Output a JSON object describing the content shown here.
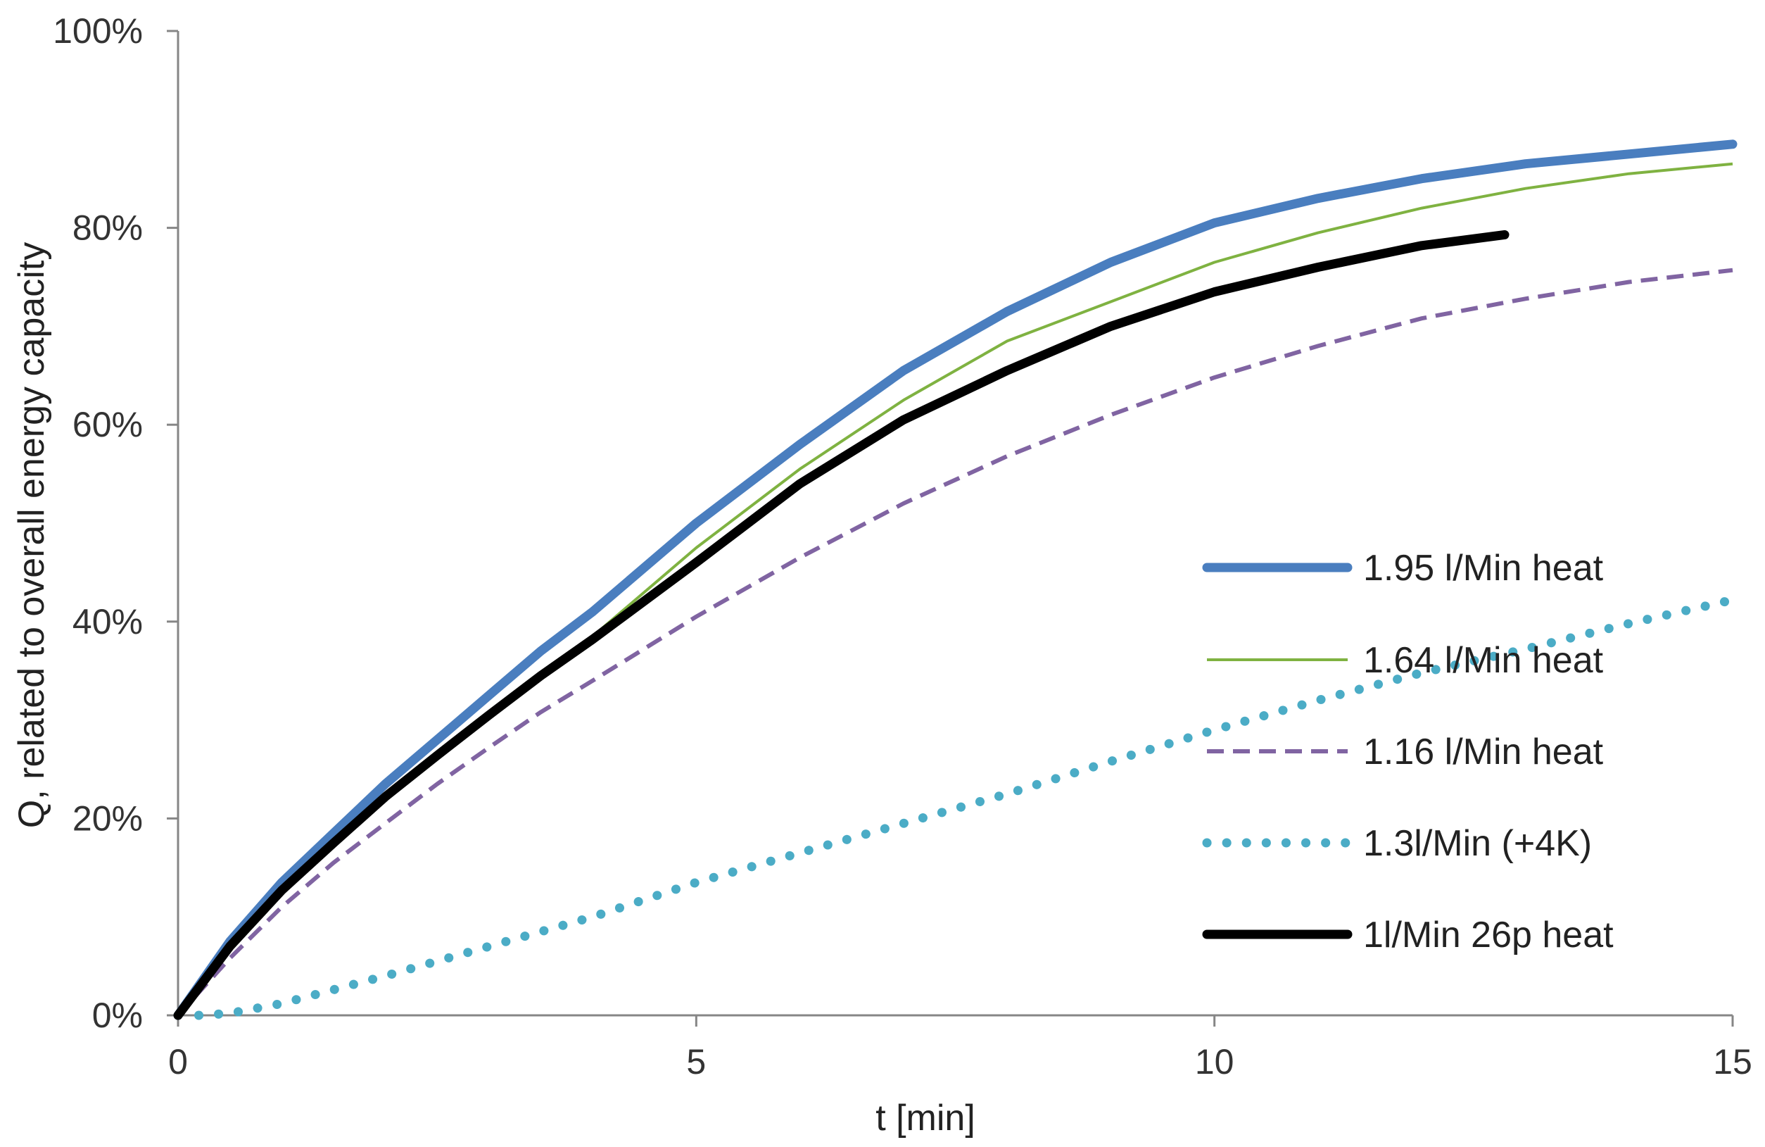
{
  "chart_data": {
    "type": "line",
    "title": "",
    "xlabel": "t [min]",
    "ylabel": "Q, related to overall energy capacity",
    "xlim": [
      0,
      15
    ],
    "ylim": [
      0,
      1
    ],
    "xticks": [
      0,
      5,
      10,
      15
    ],
    "xtick_labels": [
      "0",
      "5",
      "10",
      "15"
    ],
    "yticks": [
      0,
      0.2,
      0.4,
      0.6,
      0.8,
      1.0
    ],
    "ytick_labels": [
      "0%",
      "20%",
      "40%",
      "60%",
      "80%",
      "100%"
    ],
    "grid": false,
    "legend_position": "right",
    "series": [
      {
        "name": "1.95 l/Min heat",
        "color": "#4a7ebf",
        "style": "solid-thick",
        "x": [
          0,
          0.5,
          1,
          1.5,
          2,
          2.5,
          3,
          3.5,
          4,
          5,
          6,
          7,
          8,
          9,
          10,
          11,
          12,
          13,
          14,
          15
        ],
        "y": [
          0,
          0.075,
          0.135,
          0.185,
          0.235,
          0.28,
          0.325,
          0.37,
          0.41,
          0.5,
          0.58,
          0.655,
          0.715,
          0.765,
          0.805,
          0.83,
          0.85,
          0.865,
          0.875,
          0.885
        ]
      },
      {
        "name": "1.64 l/Min heat",
        "color": "#7fb241",
        "style": "solid-thin",
        "x": [
          0,
          0.5,
          1,
          1.5,
          2,
          2.5,
          3,
          3.5,
          4,
          5,
          6,
          7,
          8,
          9,
          10,
          11,
          12,
          13,
          14,
          15
        ],
        "y": [
          0,
          0.07,
          0.127,
          0.175,
          0.222,
          0.264,
          0.305,
          0.345,
          0.385,
          0.475,
          0.555,
          0.625,
          0.685,
          0.725,
          0.765,
          0.795,
          0.82,
          0.84,
          0.855,
          0.865
        ]
      },
      {
        "name": "1.16 l/Min heat",
        "color": "#8064a2",
        "style": "dashed",
        "x": [
          0,
          0.5,
          1,
          1.5,
          2,
          2.5,
          3,
          3.5,
          4,
          5,
          6,
          7,
          8,
          9,
          10,
          11,
          12,
          13,
          14,
          15
        ],
        "y": [
          0,
          0.058,
          0.11,
          0.155,
          0.195,
          0.235,
          0.272,
          0.308,
          0.34,
          0.405,
          0.465,
          0.52,
          0.568,
          0.61,
          0.648,
          0.68,
          0.708,
          0.728,
          0.745,
          0.757
        ]
      },
      {
        "name": "1.3l/Min (+4K)",
        "color": "#4bacc6",
        "style": "dotted",
        "x": [
          0.2,
          0.5,
          1,
          2,
          3,
          4,
          5,
          6,
          7,
          8,
          9,
          10,
          11,
          12,
          13,
          14,
          15
        ],
        "y": [
          0,
          0.002,
          0.012,
          0.04,
          0.07,
          0.1,
          0.135,
          0.165,
          0.195,
          0.225,
          0.258,
          0.29,
          0.32,
          0.348,
          0.372,
          0.398,
          0.422
        ]
      },
      {
        "name": "1l/Min 26p heat",
        "color": "#000000",
        "style": "solid-thick",
        "x": [
          0,
          0.5,
          1,
          1.5,
          2,
          2.5,
          3,
          3.5,
          4,
          5,
          6,
          7,
          8,
          9,
          10,
          11,
          12,
          12.8
        ],
        "y": [
          0,
          0.07,
          0.127,
          0.175,
          0.222,
          0.264,
          0.305,
          0.345,
          0.382,
          0.46,
          0.54,
          0.605,
          0.655,
          0.7,
          0.735,
          0.76,
          0.782,
          0.793
        ]
      }
    ]
  }
}
